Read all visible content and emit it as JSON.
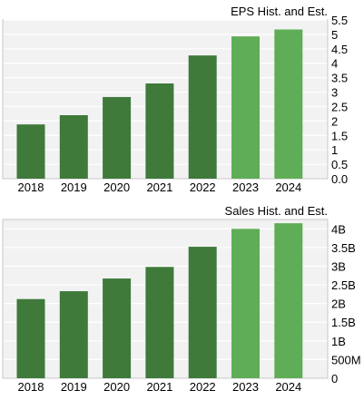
{
  "chart_data": [
    {
      "type": "bar",
      "title": "EPS Hist. and Est.",
      "categories": [
        "2018",
        "2019",
        "2020",
        "2021",
        "2022",
        "2023",
        "2024"
      ],
      "values": [
        1.88,
        2.2,
        2.83,
        3.3,
        4.27,
        4.93,
        5.17
      ],
      "estimate_flags": [
        false,
        false,
        false,
        false,
        false,
        true,
        true
      ],
      "ylim": [
        0,
        5.5
      ],
      "y_ticks": [
        0,
        0.5,
        1,
        1.5,
        2,
        2.5,
        3,
        3.5,
        4,
        4.5,
        5,
        5.5
      ],
      "y_tick_labels": [
        "0.0",
        "0.5",
        "1",
        "1.5",
        "2",
        "2.5",
        "3",
        "3.5",
        "4",
        "4.5",
        "5",
        "5.5"
      ],
      "grid": true,
      "colors": {
        "historical": "#3f7a3b",
        "estimate": "#5fad56",
        "background": "#f2f2f2",
        "grid": "#ffffff"
      }
    },
    {
      "type": "bar",
      "title": "Sales Hist. and Est.",
      "categories": [
        "2018",
        "2019",
        "2020",
        "2021",
        "2022",
        "2023",
        "2024"
      ],
      "values": [
        2120000000,
        2330000000,
        2670000000,
        2980000000,
        3520000000,
        4000000000,
        4150000000
      ],
      "estimate_flags": [
        false,
        false,
        false,
        false,
        false,
        true,
        true
      ],
      "ylim": [
        0,
        4250000000
      ],
      "y_ticks": [
        0,
        500000000,
        1000000000,
        1500000000,
        2000000000,
        2500000000,
        3000000000,
        3500000000,
        4000000000
      ],
      "y_tick_labels": [
        "0",
        "500M",
        "1B",
        "1.5B",
        "2B",
        "2.5B",
        "3B",
        "3.5B",
        "4B"
      ],
      "grid": true,
      "colors": {
        "historical": "#3f7a3b",
        "estimate": "#5fad56",
        "background": "#f2f2f2",
        "grid": "#ffffff"
      }
    }
  ]
}
